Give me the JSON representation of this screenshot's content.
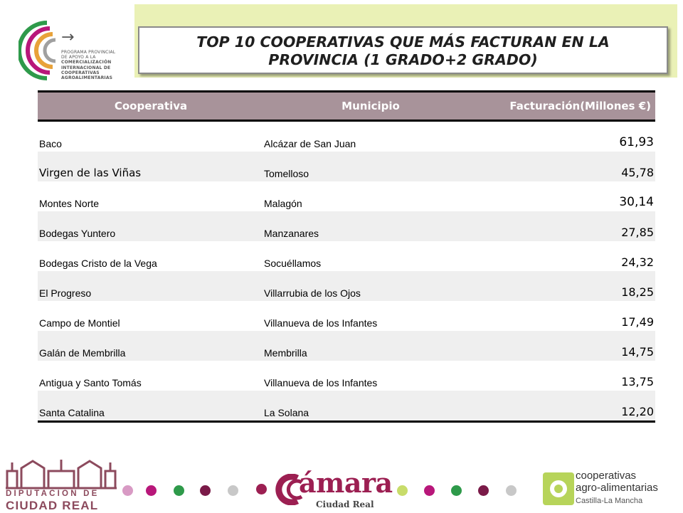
{
  "title": {
    "line1": "TOP 10 COOPERATIVAS QUE MÁS FACTURAN  EN LA",
    "line2": "PROVINCIA (1 GRADO+2 GRADO)"
  },
  "program_logo": {
    "lines": [
      "PROGRAMA PROVINCIAL",
      "DE APOYO A LA",
      "COMERCIALIZACIÓN",
      "INTERNACIONAL DE",
      "COOPERATIVAS",
      "AGROALIMENTARIAS"
    ]
  },
  "table": {
    "headers": [
      "Cooperativa",
      "Municipio",
      "Facturación(Millones €)"
    ],
    "rows": [
      {
        "cooperativa": "Baco",
        "municipio": "Alcázar de San Juan",
        "facturacion": "61,93"
      },
      {
        "cooperativa": "Virgen de las Viñas",
        "municipio": "Tomelloso",
        "facturacion": "45,78"
      },
      {
        "cooperativa": "Montes Norte",
        "municipio": "Malagón",
        "facturacion": "30,14"
      },
      {
        "cooperativa": "Bodegas Yuntero",
        "municipio": "Manzanares",
        "facturacion": "27,85"
      },
      {
        "cooperativa": "Bodegas Cristo de la Vega",
        "municipio": "Socuéllamos",
        "facturacion": "24,32"
      },
      {
        "cooperativa": "El Progreso",
        "municipio": "Villarrubia de los Ojos",
        "facturacion": "18,25"
      },
      {
        "cooperativa": "Campo de Montiel",
        "municipio": "Villanueva de los Infantes",
        "facturacion": "17,49"
      },
      {
        "cooperativa": "Galán de Membrilla",
        "municipio": "Membrilla",
        "facturacion": "14,75"
      },
      {
        "cooperativa": "Antigua y Santo Tomás",
        "municipio": "Villanueva de los Infantes",
        "facturacion": "13,75"
      },
      {
        "cooperativa": "Santa Catalina",
        "municipio": "La Solana",
        "facturacion": "12,20"
      }
    ]
  },
  "footer": {
    "diputacion_line1": "DIPUTACION DE",
    "diputacion_line2": "CIUDAD REAL",
    "camara_word": "ámara",
    "camara_sub": "Ciudad Real",
    "coop_line1": "cooperativas",
    "coop_line2": "agro-alimentarias",
    "coop_line3": "Castilla-La Mancha"
  },
  "colors": {
    "title_band": "#eaf1b6",
    "header_bg": "#a8939a",
    "dots": [
      "#d89ac4",
      "#b8177a",
      "#2e9a4a",
      "#7a1a48",
      "#c8c8c8",
      "#9c1f52",
      "#c8dc6a",
      "#b8177a",
      "#2e9a4a",
      "#7a1a48",
      "#c8c8c8"
    ]
  }
}
